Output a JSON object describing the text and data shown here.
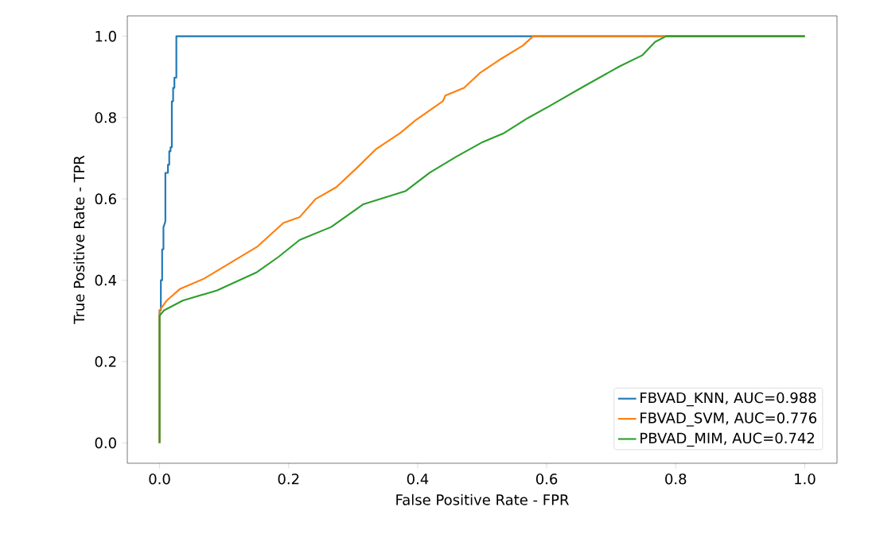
{
  "chart_data": {
    "type": "line",
    "xlabel": "False Positive Rate - FPR",
    "ylabel": "True Positive Rate - TPR",
    "xlim": [
      -0.05,
      1.05
    ],
    "ylim": [
      -0.05,
      1.05
    ],
    "xticks": [
      {
        "value": 0,
        "label": "0.0"
      },
      0.2,
      0.4,
      0.6,
      0.8,
      {
        "value": 1,
        "label": "1.0"
      }
    ],
    "yticks": [
      {
        "value": 0,
        "label": "0.0"
      },
      0.2,
      0.4,
      0.6,
      0.8,
      {
        "value": 1,
        "label": "1.0"
      }
    ],
    "legend": "bottom right",
    "grid": false,
    "marker": "none",
    "line_style": "solid",
    "series": [
      {
        "name": "FBVAD_KNN, AUC=0.988",
        "color": "#1f77b4",
        "x": [
          0,
          0,
          0.001,
          0.002,
          0.002,
          0.004,
          0.004,
          0.006,
          0.006,
          0.009,
          0.009,
          0.013,
          0.013,
          0.015,
          0.015,
          0.017,
          0.017,
          0.019,
          0.019,
          0.021,
          0.021,
          0.023,
          0.023,
          0.026,
          0.026,
          1
        ],
        "values": [
          0,
          0.326,
          0.326,
          0.326,
          0.4,
          0.4,
          0.476,
          0.476,
          0.53,
          0.545,
          0.664,
          0.664,
          0.684,
          0.684,
          0.717,
          0.717,
          0.727,
          0.727,
          0.84,
          0.84,
          0.873,
          0.873,
          0.898,
          0.898,
          1,
          1
        ]
      },
      {
        "name": "FBVAD_SVM, AUC=0.776",
        "color": "#ff7f0e",
        "x": [
          0,
          0,
          0.011,
          0.032,
          0.069,
          0.11,
          0.151,
          0.192,
          0.217,
          0.242,
          0.274,
          0.307,
          0.336,
          0.373,
          0.398,
          0.439,
          0.443,
          0.472,
          0.496,
          0.53,
          0.563,
          0.579,
          1
        ],
        "values": [
          0,
          0.326,
          0.35,
          0.379,
          0.404,
          0.443,
          0.482,
          0.541,
          0.555,
          0.6,
          0.629,
          0.678,
          0.723,
          0.762,
          0.795,
          0.84,
          0.854,
          0.873,
          0.909,
          0.945,
          0.977,
          1,
          1
        ]
      },
      {
        "name": "PBVAD_MIM, AUC=0.742",
        "color": "#2ca02c",
        "x": [
          0,
          0,
          0.007,
          0.036,
          0.089,
          0.151,
          0.184,
          0.217,
          0.266,
          0.316,
          0.381,
          0.419,
          0.46,
          0.501,
          0.534,
          0.571,
          0.604,
          0.658,
          0.713,
          0.748,
          0.768,
          0.785,
          1
        ],
        "values": [
          0,
          0.313,
          0.326,
          0.35,
          0.375,
          0.42,
          0.457,
          0.499,
          0.531,
          0.587,
          0.619,
          0.665,
          0.704,
          0.74,
          0.762,
          0.799,
          0.828,
          0.877,
          0.926,
          0.953,
          0.986,
          1,
          1
        ]
      }
    ]
  }
}
